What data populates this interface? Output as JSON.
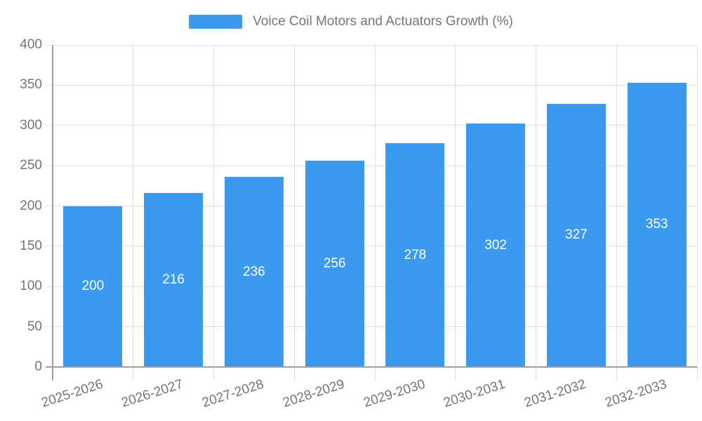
{
  "legend": {
    "label": "Voice Coil Motors and Actuators Growth (%)"
  },
  "chart_data": {
    "type": "bar",
    "title": "Voice Coil Motors and Actuators Growth (%)",
    "categories": [
      "2025-2026",
      "2026-2027",
      "2027-2028",
      "2028-2029",
      "2029-2030",
      "2030-2031",
      "2031-2032",
      "2032-2033"
    ],
    "values": [
      200,
      216,
      236,
      256,
      278,
      302,
      327,
      353
    ],
    "xlabel": "",
    "ylabel": "",
    "ylim": [
      0,
      400
    ],
    "ytick_step": 50,
    "ytick_labels": [
      "0",
      "50",
      "100",
      "150",
      "200",
      "250",
      "300",
      "350",
      "400"
    ],
    "grid": true,
    "legend_position": "top",
    "colors": {
      "bar": "#3b99ef",
      "grid": "#e0e0e0",
      "axis": "#9e9e9e",
      "tick_label": "#757575",
      "value_label": "#ffffff",
      "background": "#ffffff"
    }
  }
}
